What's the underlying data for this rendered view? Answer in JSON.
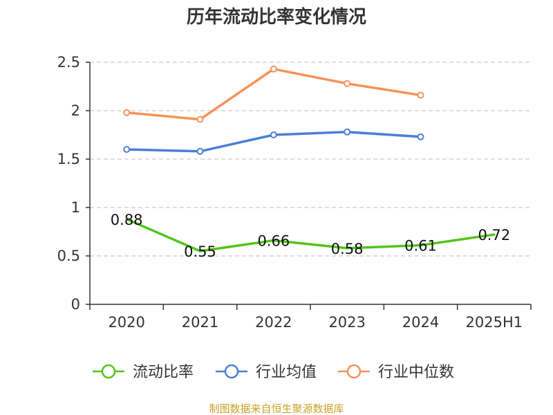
{
  "chart_data": {
    "type": "line",
    "title": "历年流动比率变化情况",
    "categories": [
      "2020",
      "2021",
      "2022",
      "2023",
      "2024",
      "2025H1"
    ],
    "ylim": [
      0,
      2.5
    ],
    "yticks": [
      "0",
      "0.5",
      "1",
      "1.5",
      "2",
      "2.5"
    ],
    "grid": true,
    "legend_position": "bottom",
    "series": [
      {
        "name": "流动比率",
        "color": "#52c41a",
        "values": [
          0.88,
          0.55,
          0.66,
          0.58,
          0.61,
          0.72
        ],
        "labels": [
          "0.88",
          "0.55",
          "0.66",
          "0.58",
          "0.61",
          "0.72"
        ]
      },
      {
        "name": "行业均值",
        "color": "#4a7fd6",
        "values": [
          1.6,
          1.58,
          1.75,
          1.78,
          1.73,
          null
        ]
      },
      {
        "name": "行业中位数",
        "color": "#f59259",
        "values": [
          1.98,
          1.91,
          2.43,
          2.28,
          2.16,
          null
        ]
      }
    ]
  },
  "source": "制图数据来自恒生聚源数据库"
}
